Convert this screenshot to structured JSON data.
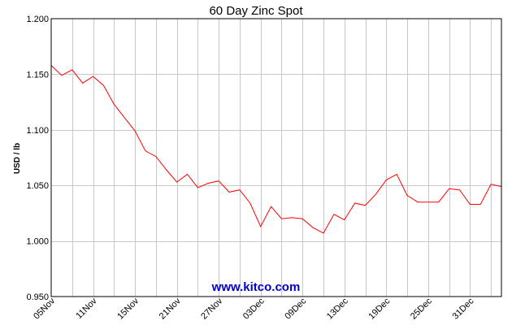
{
  "chart_data": {
    "type": "line",
    "title": "60 Day Zinc Spot",
    "ylabel": "USD / lb",
    "xlabel": "",
    "ylim": [
      0.95,
      1.2
    ],
    "yticks": [
      0.95,
      1.0,
      1.05,
      1.1,
      1.15,
      1.2
    ],
    "ytick_labels": [
      "0.950",
      "1.000",
      "1.050",
      "1.100",
      "1.150",
      "1.200"
    ],
    "xtick_labels": [
      "05Nov",
      "11Nov",
      "15Nov",
      "21Nov",
      "27Nov",
      "03Dec",
      "09Dec",
      "13Dec",
      "19Dec",
      "25Dec",
      "31Dec"
    ],
    "xtick_index": [
      0,
      4,
      8,
      12,
      16,
      20,
      24,
      28,
      32,
      36,
      40
    ],
    "grid": true,
    "line_color": "#ff0000",
    "series": [
      {
        "values": [
          1.158,
          1.149,
          1.154,
          1.142,
          1.148,
          1.14,
          1.123,
          1.111,
          1.099,
          1.081,
          1.076,
          1.064,
          1.053,
          1.06,
          1.048,
          1.052,
          1.054,
          1.044,
          1.046,
          1.034,
          1.013,
          1.031,
          1.02,
          1.021,
          1.02,
          1.012,
          1.007,
          1.024,
          1.019,
          1.034,
          1.032,
          1.042,
          1.055,
          1.06,
          1.041,
          1.035,
          1.035,
          1.035,
          1.047,
          1.046,
          1.033,
          1.033,
          1.051,
          1.049
        ]
      }
    ]
  },
  "watermark": {
    "text": "www.kitco.com",
    "color": "#0000cc"
  }
}
